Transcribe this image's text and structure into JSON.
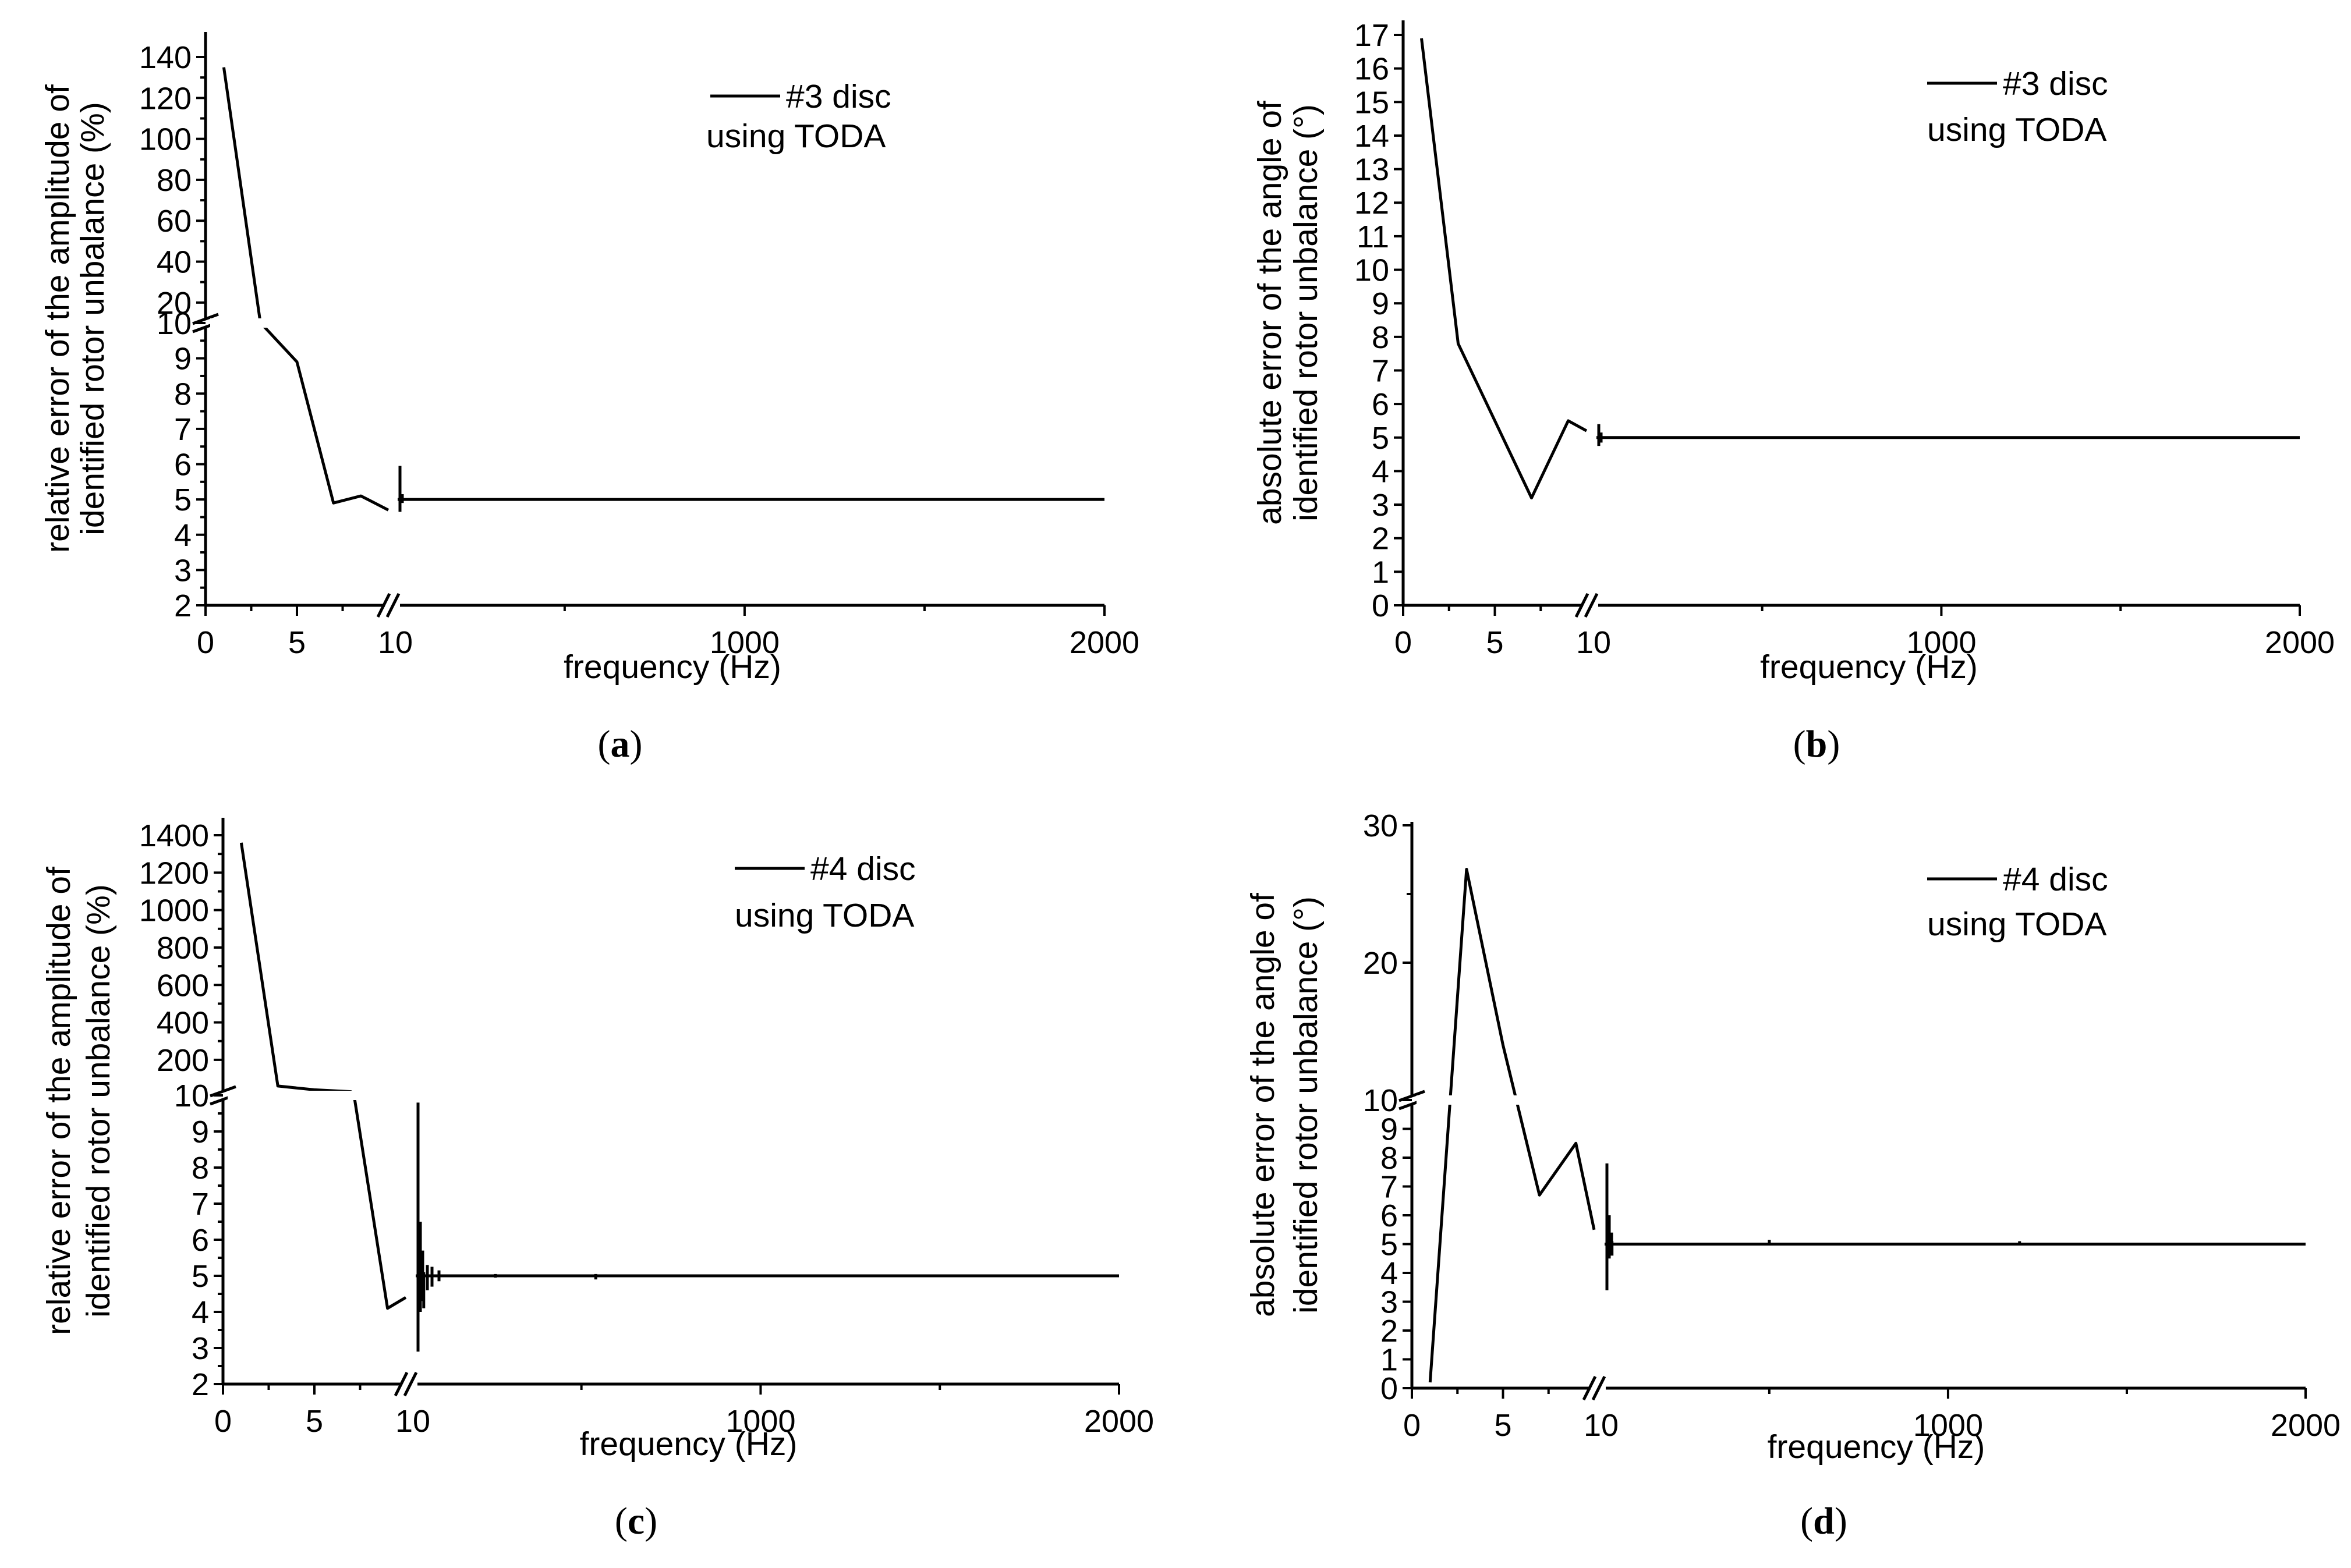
{
  "chart_data": [
    {
      "id": "a",
      "type": "line",
      "panel_label": "a",
      "ylabel_line1": "relative error of the amplitude of",
      "ylabel_line2": "identified rotor unbalance (%)",
      "xlabel": "frequency (Hz)",
      "legend_line1": "#3 disc",
      "legend_line2": "using TODA",
      "y_segments": [
        {
          "range": [
            2,
            10
          ],
          "ticks": [
            2,
            3,
            4,
            5,
            6,
            7,
            8,
            9,
            10
          ]
        },
        {
          "range": [
            10,
            140
          ],
          "ticks": [
            20,
            40,
            60,
            80,
            100,
            120,
            140
          ]
        }
      ],
      "x_segments": [
        {
          "range": [
            0,
            10
          ],
          "ticks": [
            0,
            5
          ],
          "minor": [
            2.5,
            7.5
          ]
        },
        {
          "range": [
            10,
            2000
          ],
          "ticks": [
            1000,
            2000
          ],
          "minor": [
            500,
            1500
          ]
        }
      ],
      "x_break_label": "10",
      "series_name": "#3 disc",
      "data": [
        [
          1,
          135
        ],
        [
          3,
          10.2
        ],
        [
          5,
          8.9
        ],
        [
          7,
          4.9
        ],
        [
          8.5,
          5.1
        ],
        [
          10,
          4.7
        ]
      ],
      "noise_start": 10,
      "spikes": [
        [
          11,
          5.95,
          4.65
        ],
        [
          12,
          5.15,
          4.9
        ]
      ],
      "steady_value": 5.0
    },
    {
      "id": "b",
      "type": "line",
      "panel_label": "b",
      "ylabel_line1": "absolute error of the angle of",
      "ylabel_line2": "identified rotor unbalance (°)",
      "xlabel": "frequency (Hz)",
      "legend_line1": "#3 disc",
      "legend_line2": "using TODA",
      "y_segments": [
        {
          "range": [
            0,
            17
          ],
          "ticks": [
            0,
            1,
            2,
            3,
            4,
            5,
            6,
            7,
            8,
            9,
            10,
            11,
            12,
            13,
            14,
            15,
            16,
            17
          ]
        }
      ],
      "x_segments": [
        {
          "range": [
            0,
            10
          ],
          "ticks": [
            0,
            5
          ],
          "minor": [
            2.5,
            7.5
          ]
        },
        {
          "range": [
            10,
            2000
          ],
          "ticks": [
            1000,
            2000
          ],
          "minor": [
            500,
            1500
          ]
        }
      ],
      "x_break_label": "10",
      "series_name": "#3 disc",
      "data": [
        [
          1,
          16.9
        ],
        [
          3,
          7.8
        ],
        [
          5,
          5.5
        ],
        [
          7,
          3.2
        ],
        [
          9,
          5.5
        ],
        [
          10,
          5.2
        ]
      ],
      "noise_start": 10,
      "spikes": [
        [
          11,
          5.4,
          4.75
        ],
        [
          12,
          5.15,
          4.85
        ]
      ],
      "steady_value": 5.0
    },
    {
      "id": "c",
      "type": "line",
      "panel_label": "c",
      "ylabel_line1": "relative error of the amplitude of",
      "ylabel_line2": "identified rotor unbalance (%)",
      "xlabel": "frequency (Hz)",
      "legend_line1": "#4 disc",
      "legend_line2": "using TODA",
      "y_segments": [
        {
          "range": [
            2,
            10
          ],
          "ticks": [
            2,
            3,
            4,
            5,
            6,
            7,
            8,
            9,
            10
          ]
        },
        {
          "range": [
            10,
            1400
          ],
          "ticks": [
            200,
            400,
            600,
            800,
            1000,
            1200,
            1400
          ]
        }
      ],
      "x_segments": [
        {
          "range": [
            0,
            10
          ],
          "ticks": [
            0,
            5
          ],
          "minor": [
            2.5,
            7.5
          ]
        },
        {
          "range": [
            10,
            2000
          ],
          "ticks": [
            1000,
            2000
          ],
          "minor": [
            500,
            1500
          ]
        }
      ],
      "x_break_label": "10",
      "series_name": "#4 disc",
      "data": [
        [
          1,
          1360
        ],
        [
          3,
          60
        ],
        [
          5,
          40
        ],
        [
          7,
          30
        ],
        [
          7.2,
          9.9
        ],
        [
          9,
          4.1
        ],
        [
          10,
          4.4
        ]
      ],
      "noise_start": 10,
      "spikes": [
        [
          11,
          9.8,
          2.9
        ],
        [
          12,
          6.5,
          4.0
        ],
        [
          13,
          5.7,
          4.3
        ],
        [
          15,
          5.3,
          4.6
        ],
        [
          17,
          5.25,
          4.7
        ],
        [
          20,
          5.15,
          4.85
        ],
        [
          60,
          5.1,
          4.1
        ],
        [
          260,
          5.05,
          4.95
        ],
        [
          540,
          5.05,
          4.9
        ]
      ],
      "steady_value": 5.0
    },
    {
      "id": "d",
      "type": "line",
      "panel_label": "d",
      "ylabel_line1": "absolute error of the angle of",
      "ylabel_line2": "identified rotor unbalance (°)",
      "xlabel": "frequency (Hz)",
      "legend_line1": "#4 disc",
      "legend_line2": "using TODA",
      "y_segments": [
        {
          "range": [
            0,
            10
          ],
          "ticks": [
            0,
            1,
            2,
            3,
            4,
            5,
            6,
            7,
            8,
            9,
            10
          ]
        },
        {
          "range": [
            10,
            30
          ],
          "ticks": [
            20,
            30
          ]
        }
      ],
      "x_segments": [
        {
          "range": [
            0,
            10
          ],
          "ticks": [
            0,
            5
          ],
          "minor": [
            2.5,
            7.5
          ]
        },
        {
          "range": [
            10,
            2000
          ],
          "ticks": [
            1000,
            2000
          ],
          "minor": [
            500,
            1500
          ]
        }
      ],
      "x_break_label": "10",
      "series_name": "#4 disc",
      "data": [
        [
          1,
          0.2
        ],
        [
          3,
          26.8
        ],
        [
          5,
          14.0
        ],
        [
          7,
          6.7
        ],
        [
          9,
          8.5
        ],
        [
          10,
          5.5
        ]
      ],
      "noise_start": 10,
      "spikes": [
        [
          11,
          7.8,
          3.4
        ],
        [
          12,
          6.0,
          4.5
        ],
        [
          13,
          5.4,
          4.7
        ],
        [
          60,
          5.1,
          4.6
        ],
        [
          500,
          5.15,
          4.95
        ],
        [
          1200,
          5.1,
          4.95
        ]
      ],
      "steady_value": 5.0
    }
  ]
}
